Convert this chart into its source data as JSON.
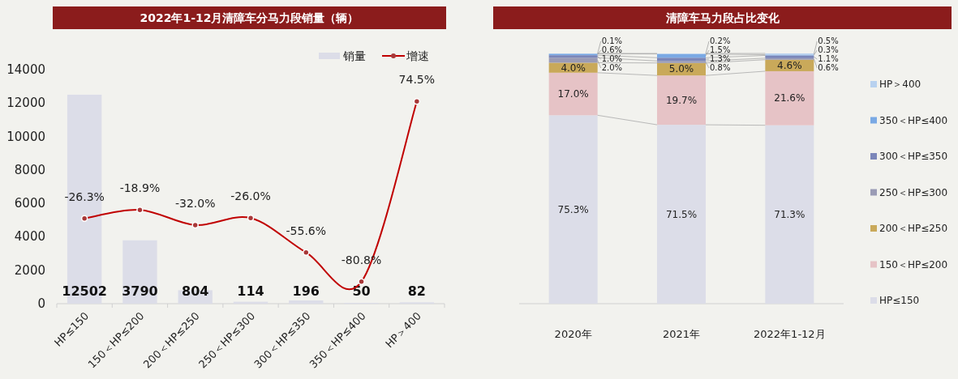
{
  "chart_data": [
    {
      "type": "bar",
      "title": "2022年1-12月清障车分马力段销量（辆）",
      "categories": [
        "HP≤150",
        "150＜HP≤200",
        "200＜HP≤250",
        "250＜HP≤300",
        "300＜HP≤350",
        "350＜HP≤400",
        "HP＞400"
      ],
      "series": [
        {
          "name": "销量",
          "type": "bar",
          "color": "#dcdde8",
          "values": [
            12502,
            3790,
            804,
            114,
            196,
            50,
            82
          ],
          "value_labels": [
            "12502",
            "3790",
            "804",
            "114",
            "196",
            "50",
            "82"
          ]
        },
        {
          "name": "增速",
          "type": "line",
          "axis": "y2",
          "color": "#c00000",
          "values": [
            -26.3,
            -18.9,
            -32.0,
            -26.0,
            -55.6,
            -80.8,
            74.5
          ],
          "value_labels": [
            "-26.3%",
            "-18.9%",
            "-32.0%",
            "-26.0%",
            "-55.6%",
            "-80.8%",
            "74.5%"
          ]
        }
      ],
      "ylim": [
        0,
        14000
      ],
      "yticks": [
        0,
        2000,
        4000,
        6000,
        8000,
        10000,
        12000,
        14000
      ],
      "legend": "top right",
      "marker": "circle",
      "grid": false
    },
    {
      "type": "bar",
      "stacked": true,
      "title": "清障车马力段占比变化",
      "categories": [
        "2020年",
        "2021年",
        "2022年1-12月"
      ],
      "series": [
        {
          "name": "HP≤150",
          "color": "#dcdde8",
          "values": [
            75.3,
            71.5,
            71.3
          ],
          "value_labels": [
            "75.3%",
            "71.5%",
            "71.3%"
          ]
        },
        {
          "name": "150＜HP≤200",
          "color": "#e6c3c6",
          "values": [
            17.0,
            19.7,
            21.6
          ],
          "value_labels": [
            "17.0%",
            "19.7%",
            "21.6%"
          ]
        },
        {
          "name": "200＜HP≤250",
          "color": "#c9a95a",
          "values": [
            4.0,
            5.0,
            4.6
          ],
          "value_labels": [
            "4.0%",
            "5.0%",
            "4.6%"
          ]
        },
        {
          "name": "250＜HP≤300",
          "color": "#9a9bb5",
          "values": [
            2.0,
            0.8,
            0.6
          ],
          "value_labels": [
            "2.0%",
            "0.8%",
            "0.6%"
          ]
        },
        {
          "name": "300＜HP≤350",
          "color": "#7b86b9",
          "values": [
            1.0,
            1.3,
            1.1
          ],
          "value_labels": [
            "1.0%",
            "1.3%",
            "1.1%"
          ]
        },
        {
          "name": "350＜HP≤400",
          "color": "#7aa9e4",
          "values": [
            0.6,
            1.5,
            0.3
          ],
          "value_labels": [
            "0.6%",
            "1.5%",
            "0.3%"
          ]
        },
        {
          "name": "HP＞400",
          "color": "#b8d1ef",
          "values": [
            0.1,
            0.2,
            0.5
          ],
          "value_labels": [
            "0.1%",
            "0.2%",
            "0.5%"
          ]
        }
      ],
      "legend": "right"
    }
  ]
}
